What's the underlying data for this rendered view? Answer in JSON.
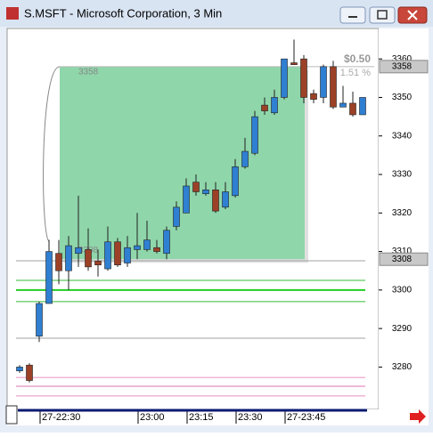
{
  "window": {
    "title": "S.MSFT - Microsoft Corporation, 3 Min"
  },
  "chart_data": {
    "type": "candlestick",
    "categories": [
      null,
      null,
      "27-22:30",
      null,
      null,
      null,
      null,
      null,
      null,
      null,
      null,
      null,
      "23:00",
      null,
      null,
      null,
      null,
      "23:15",
      null,
      null,
      null,
      null,
      "23:30",
      null,
      null,
      null,
      null,
      "27-23:45",
      null,
      null,
      null,
      null,
      null,
      null,
      null,
      null
    ],
    "open": [
      3279,
      3280.5,
      3288,
      3296.5,
      3309.5,
      3305,
      3309.5,
      3310.5,
      3307.5,
      3305.5,
      3312.5,
      3307,
      3310.5,
      3310.5,
      3311,
      3309.5,
      3316.5,
      3320,
      3328,
      3325,
      3326,
      3321.5,
      3324.5,
      3332,
      3335.5,
      3348,
      3346,
      3350,
      3359,
      3360,
      3351,
      3350,
      3358,
      3347.5,
      3348.5,
      3345.5
    ],
    "high": [
      3280.5,
      3281,
      3297,
      3313,
      3313,
      3314,
      3324.5,
      3316,
      3310.5,
      3316.5,
      3313.5,
      3314,
      3320,
      3318,
      3313,
      3316.5,
      3323,
      3329,
      3330,
      3328,
      3328,
      3328,
      3334,
      3339.5,
      3346.5,
      3350,
      3352,
      3360,
      3365,
      3361,
      3352,
      3358.5,
      3359.5,
      3353,
      3351.5,
      3350
    ],
    "low": [
      3278.5,
      3276,
      3286.5,
      3296.5,
      3301.5,
      3300,
      3306,
      3305,
      3303.5,
      3305,
      3306,
      3306,
      3308,
      3310,
      3309.5,
      3308,
      3315.5,
      3320,
      3324.5,
      3324.5,
      3320,
      3321,
      3324,
      3331.5,
      3335,
      3345.5,
      3345.5,
      3349.5,
      3358.5,
      3348.5,
      3348.5,
      3348.5,
      3347,
      3347.5,
      3345,
      3345.5
    ],
    "close": [
      3280,
      3276.5,
      3296.5,
      3310,
      3305,
      3311.5,
      3311,
      3306,
      3306.5,
      3312.5,
      3306.5,
      3311,
      3311.5,
      3313,
      3310,
      3315.5,
      3321.5,
      3327,
      3325.5,
      3326,
      3320.5,
      3325.5,
      3332,
      3336,
      3345,
      3346.5,
      3350,
      3360,
      3358.5,
      3350,
      3349.5,
      3358,
      3347.5,
      3348.5,
      3345.5,
      3350
    ],
    "up_color": "#2f7fd2",
    "down_color": "#9c4127",
    "ylim": [
      3269,
      3367.9
    ],
    "yticks": [
      3280,
      3290,
      3300,
      3310,
      3320,
      3330,
      3340,
      3350,
      3360
    ],
    "levels": [
      {
        "value": 3302.5,
        "color": "#33bb33"
      },
      {
        "value": 3300,
        "color": "#22cc22"
      },
      {
        "value": 3297,
        "color": "#33bb33"
      },
      {
        "value": 3307.6,
        "color": "#a0a0a0"
      },
      {
        "value": 3287.5,
        "color": "#a0a0a0"
      },
      {
        "value": 3277.3,
        "color": "#e890c0"
      },
      {
        "value": 3275,
        "color": "#e070b0"
      },
      {
        "value": 3272.5,
        "color": "#e890c0"
      }
    ],
    "measure": {
      "high": {
        "value": 3358,
        "label": "3358"
      },
      "low": {
        "value": 3308,
        "label": "3308"
      },
      "change": "$0.50",
      "percent": "1.51 %",
      "color": "#8fd6aa"
    }
  }
}
